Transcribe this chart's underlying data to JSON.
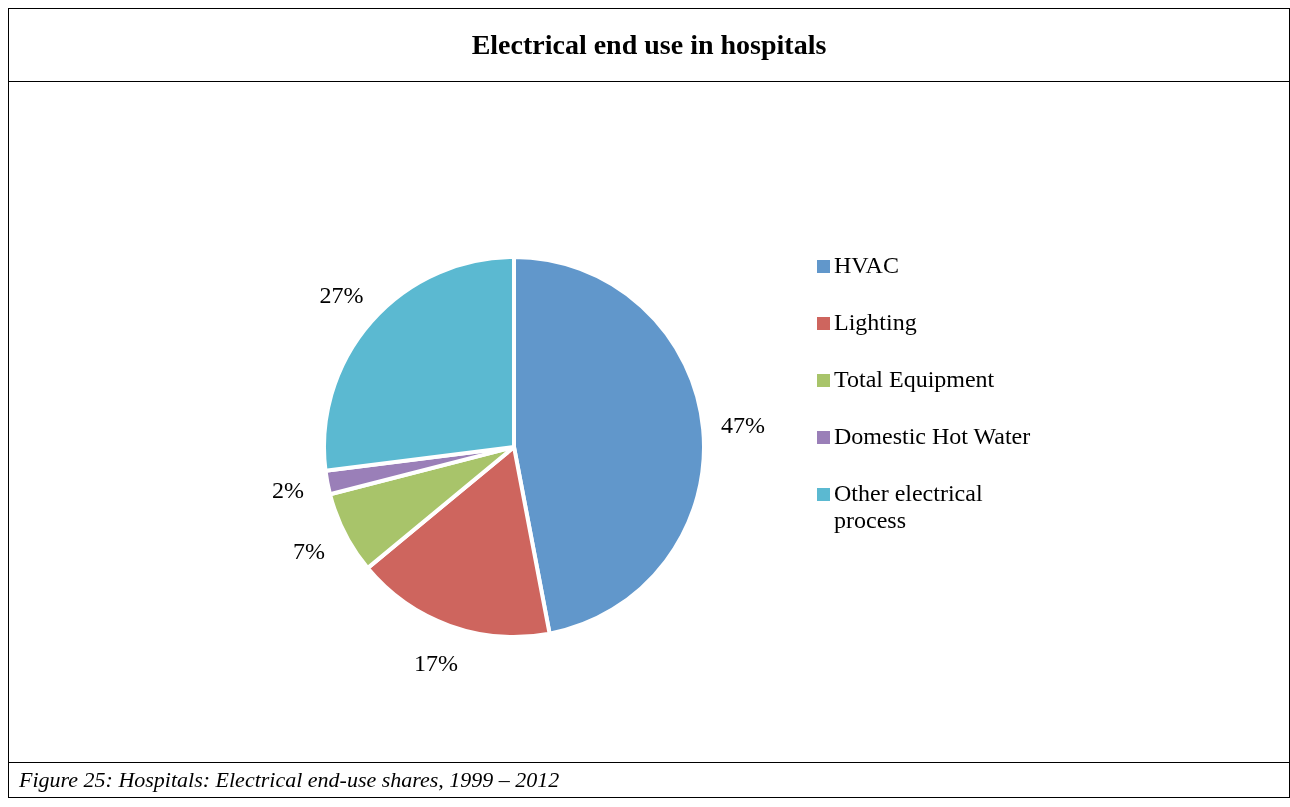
{
  "chart_data": {
    "type": "pie",
    "title": "Electrical end use in hospitals",
    "categories": [
      "HVAC",
      "Lighting",
      "Total Equipment",
      "Domestic Hot Water",
      "Other electrical process"
    ],
    "values": [
      47,
      17,
      7,
      2,
      27
    ],
    "value_labels": [
      "47%",
      "17%",
      "7%",
      "2%",
      "27%"
    ],
    "colors": [
      "#6197cb",
      "#ce655e",
      "#a8c46a",
      "#9a7fb8",
      "#5bb9d1"
    ],
    "legend": "right",
    "annotations": [
      "Figure 25: Hospitals: Electrical end-use shares, 1999 – 2012"
    ]
  }
}
